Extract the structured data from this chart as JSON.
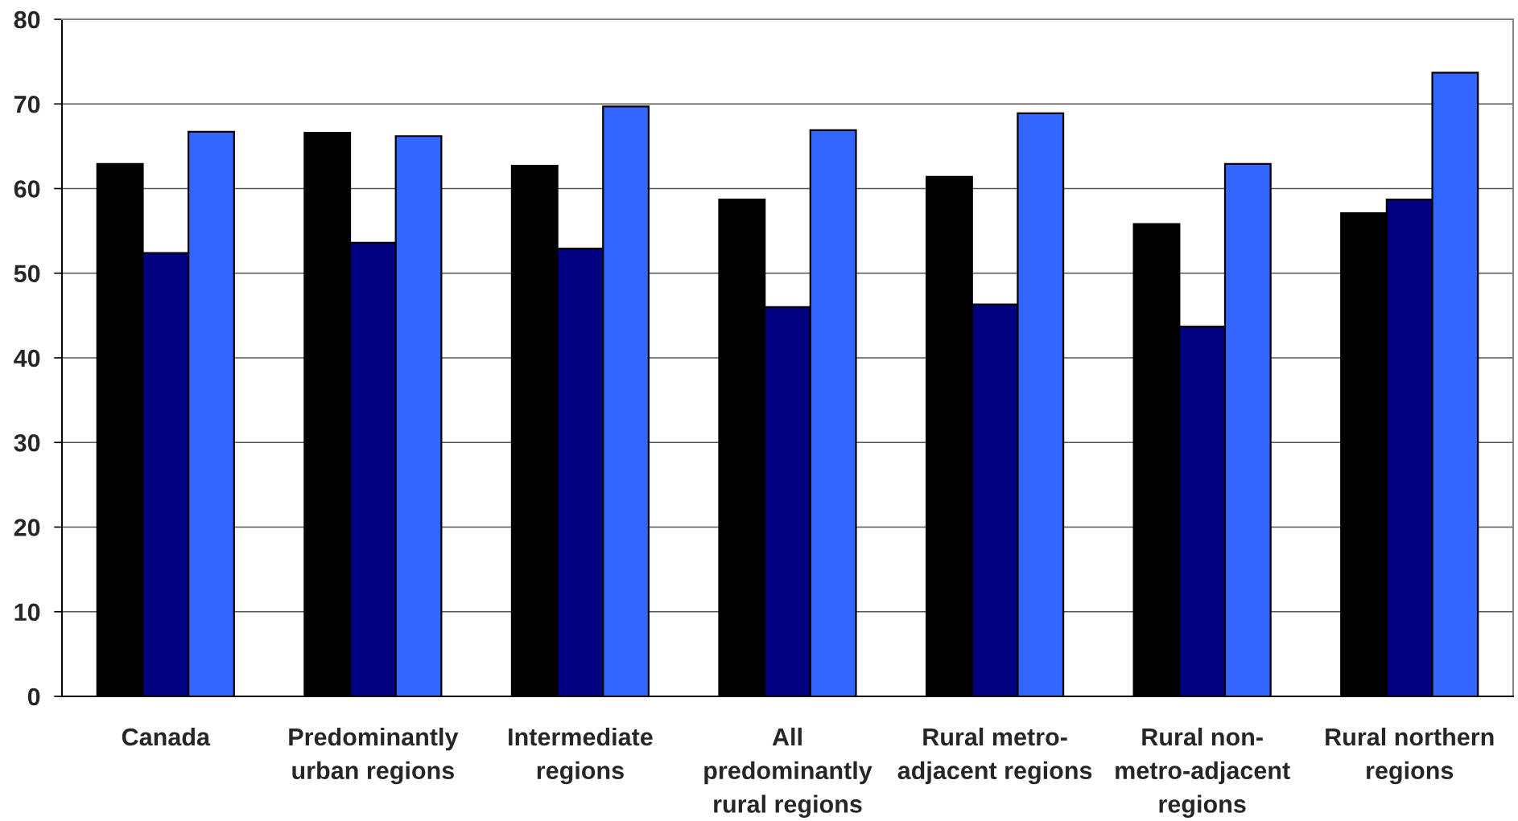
{
  "chart_data": {
    "type": "bar",
    "categories": [
      "Canada",
      "Predominantly urban regions",
      "Intermediate regions",
      "All predominantly rural regions",
      "Rural metro-adjacent regions",
      "Rural non-metro-adjacent regions",
      "Rural northern regions"
    ],
    "series": [
      {
        "color": "#000000",
        "values": [
          62.9,
          66.6,
          62.7,
          58.7,
          61.4,
          55.8,
          57.1
        ]
      },
      {
        "color": "#000080",
        "values": [
          52.4,
          53.6,
          52.9,
          46.0,
          46.3,
          43.7,
          58.7
        ]
      },
      {
        "color": "#3366ff",
        "values": [
          66.7,
          66.2,
          69.7,
          66.9,
          68.9,
          62.9,
          73.7
        ]
      }
    ],
    "ylim": [
      0,
      80
    ],
    "yticks": [
      0,
      10,
      20,
      30,
      40,
      50,
      60,
      70,
      80
    ],
    "grid": "y"
  }
}
